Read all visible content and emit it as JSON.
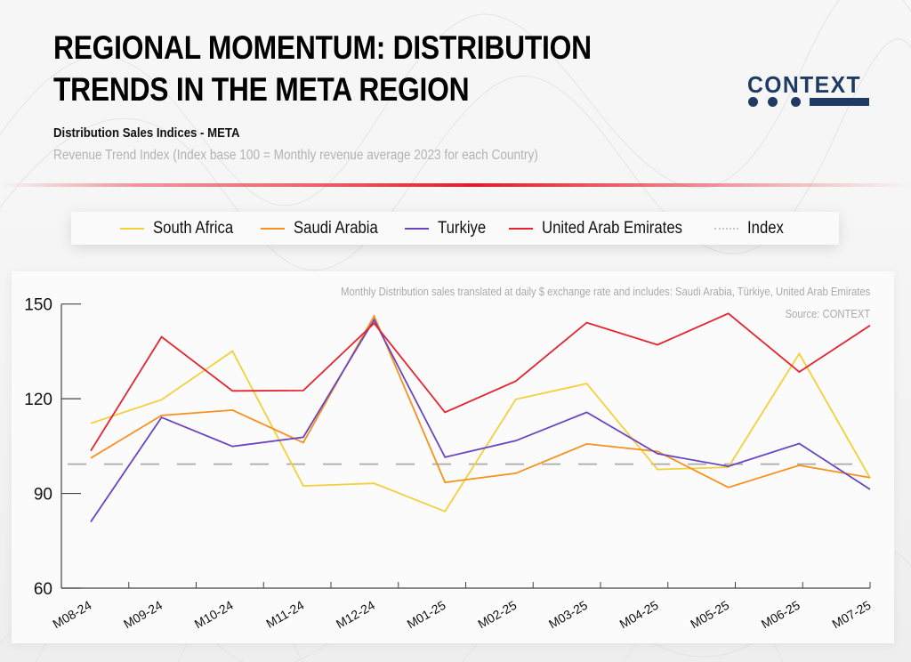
{
  "header": {
    "title_line1": "REGIONAL MOMENTUM: DISTRIBUTION",
    "title_line2": "TRENDS IN THE META REGION",
    "subtitle": "Distribution Sales Indices - META",
    "description": "Revenue Trend Index (Index base 100 = Monthly revenue average 2023 for each Country)"
  },
  "logo": {
    "text": "CONTEXT",
    "color": "#1f3b63"
  },
  "colors": {
    "divider": "#e11d2a",
    "axis": "#444444",
    "index_line": "#aaaaaa"
  },
  "chart_note": "Monthly Distribution sales translated at daily $ exchange rate and includes: Saudi Arabia, Türkiye, United Arab Emirates",
  "chart_source": "Source: CONTEXT",
  "chart_data": {
    "type": "line",
    "title": "Distribution Sales Indices - META",
    "subtitle": "Revenue Trend Index (Index base 100 = Monthly revenue average 2023 for each Country)",
    "xlabel": "",
    "ylabel": "",
    "categories": [
      "M08-24",
      "M09-24",
      "M10-24",
      "M11-24",
      "M12-24",
      "M01-25",
      "M02-25",
      "M03-25",
      "M04-25",
      "M05-25",
      "M06-25",
      "M07-25"
    ],
    "ylim": [
      60,
      150
    ],
    "yticks": [
      60,
      90,
      120,
      150
    ],
    "grid": false,
    "legend_position": "top",
    "series": [
      {
        "name": "South Africa",
        "color": "#f5cf3a",
        "values": [
          112.2,
          119.7,
          135.1,
          92.4,
          93.2,
          84.3,
          119.8,
          124.8,
          97.6,
          98.3,
          134.3,
          94.9
        ]
      },
      {
        "name": "Saudi Arabia",
        "color": "#f7901e",
        "values": [
          101.2,
          114.7,
          116.4,
          106.1,
          146.2,
          93.5,
          96.4,
          105.7,
          103.3,
          91.9,
          98.9,
          95.0
        ]
      },
      {
        "name": "Turkiye",
        "color": "#6a45c0",
        "values": [
          81.0,
          114.1,
          104.9,
          107.8,
          145.0,
          101.5,
          106.7,
          115.7,
          102.6,
          98.6,
          105.8,
          91.3
        ]
      },
      {
        "name": "United Arab Emirates",
        "color": "#e5242f",
        "values": [
          103.5,
          139.6,
          122.5,
          122.6,
          143.9,
          115.7,
          125.6,
          144.1,
          137.1,
          147.0,
          128.5,
          143.2
        ]
      }
    ],
    "reference_line": {
      "name": "Index",
      "value": 100,
      "style": "dashed",
      "color": "#aaaaaa"
    }
  }
}
